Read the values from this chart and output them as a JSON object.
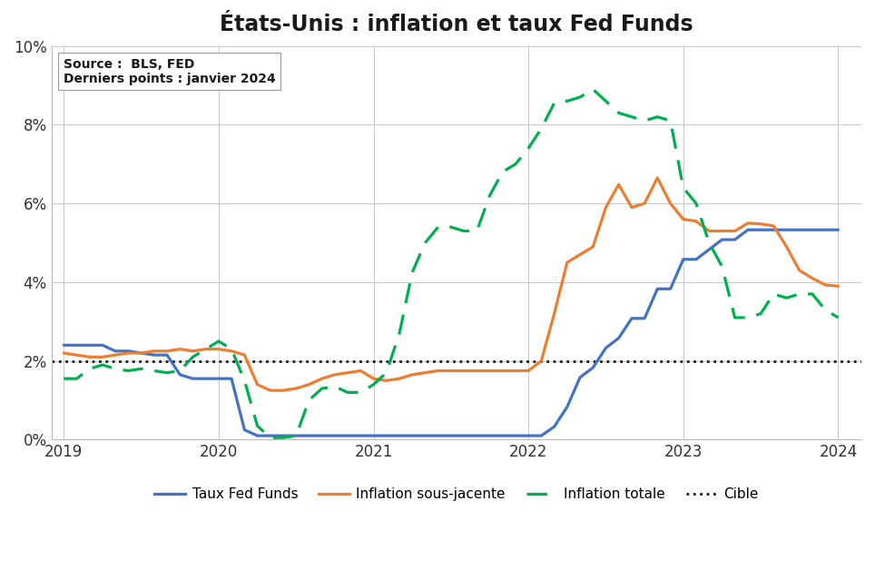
{
  "title": "États-Unis : inflation et taux Fed Funds",
  "source_text": "Source :  BLS, FED\nDerniers points : janvier 2024",
  "ylim": [
    0,
    0.1
  ],
  "yticks": [
    0,
    0.02,
    0.04,
    0.06,
    0.08,
    0.1
  ],
  "ytick_labels": [
    "0%",
    "2%",
    "4%",
    "6%",
    "8%",
    "10%"
  ],
  "xlim": [
    2018.92,
    2024.15
  ],
  "xticks": [
    2019,
    2020,
    2021,
    2022,
    2023,
    2024
  ],
  "legend_labels": [
    "Taux Fed Funds",
    "Inflation sous-jacente",
    "Inflation totale",
    "Cible"
  ],
  "colors": {
    "fed_funds": "#4472C4",
    "core_inflation": "#ED7D31",
    "total_inflation": "#00B050",
    "target": "#1a1a1a"
  },
  "target_value": 0.02,
  "fed_funds": {
    "x": [
      2019.0,
      2019.083,
      2019.167,
      2019.25,
      2019.333,
      2019.417,
      2019.5,
      2019.583,
      2019.667,
      2019.75,
      2019.833,
      2019.917,
      2020.0,
      2020.083,
      2020.167,
      2020.25,
      2020.333,
      2020.417,
      2020.5,
      2020.583,
      2020.667,
      2020.75,
      2020.833,
      2020.917,
      2021.0,
      2021.083,
      2021.167,
      2021.25,
      2021.333,
      2021.417,
      2021.5,
      2021.583,
      2021.667,
      2021.75,
      2021.833,
      2021.917,
      2022.0,
      2022.083,
      2022.167,
      2022.25,
      2022.333,
      2022.417,
      2022.5,
      2022.583,
      2022.667,
      2022.75,
      2022.833,
      2022.917,
      2023.0,
      2023.083,
      2023.167,
      2023.25,
      2023.333,
      2023.417,
      2023.5,
      2023.583,
      2023.667,
      2023.75,
      2023.833,
      2023.917,
      2024.0
    ],
    "y": [
      0.024,
      0.024,
      0.024,
      0.024,
      0.0225,
      0.0225,
      0.022,
      0.0215,
      0.0215,
      0.0165,
      0.0155,
      0.0155,
      0.0155,
      0.0155,
      0.0025,
      0.001,
      0.001,
      0.001,
      0.001,
      0.001,
      0.001,
      0.001,
      0.001,
      0.001,
      0.001,
      0.001,
      0.001,
      0.001,
      0.001,
      0.001,
      0.001,
      0.001,
      0.001,
      0.001,
      0.001,
      0.001,
      0.001,
      0.001,
      0.0033,
      0.0083,
      0.0158,
      0.0183,
      0.0233,
      0.0258,
      0.0308,
      0.0308,
      0.0383,
      0.0383,
      0.0458,
      0.0458,
      0.0483,
      0.0508,
      0.0508,
      0.0533,
      0.0533,
      0.0533,
      0.0533,
      0.0533,
      0.0533,
      0.0533,
      0.0533
    ]
  },
  "core_inflation": {
    "x": [
      2019.0,
      2019.083,
      2019.167,
      2019.25,
      2019.333,
      2019.417,
      2019.5,
      2019.583,
      2019.667,
      2019.75,
      2019.833,
      2019.917,
      2020.0,
      2020.083,
      2020.167,
      2020.25,
      2020.333,
      2020.417,
      2020.5,
      2020.583,
      2020.667,
      2020.75,
      2020.833,
      2020.917,
      2021.0,
      2021.083,
      2021.167,
      2021.25,
      2021.333,
      2021.417,
      2021.5,
      2021.583,
      2021.667,
      2021.75,
      2021.833,
      2021.917,
      2022.0,
      2022.083,
      2022.167,
      2022.25,
      2022.333,
      2022.417,
      2022.5,
      2022.583,
      2022.667,
      2022.75,
      2022.833,
      2022.917,
      2023.0,
      2023.083,
      2023.167,
      2023.25,
      2023.333,
      2023.417,
      2023.5,
      2023.583,
      2023.667,
      2023.75,
      2023.833,
      2023.917,
      2024.0
    ],
    "y": [
      0.022,
      0.0215,
      0.021,
      0.021,
      0.0215,
      0.022,
      0.022,
      0.0225,
      0.0225,
      0.023,
      0.0225,
      0.023,
      0.023,
      0.0225,
      0.0215,
      0.014,
      0.0125,
      0.0125,
      0.013,
      0.014,
      0.0155,
      0.0165,
      0.017,
      0.0175,
      0.0155,
      0.015,
      0.0155,
      0.0165,
      0.017,
      0.0175,
      0.0175,
      0.0175,
      0.0175,
      0.0175,
      0.0175,
      0.0175,
      0.0175,
      0.02,
      0.032,
      0.045,
      0.047,
      0.049,
      0.059,
      0.0648,
      0.059,
      0.06,
      0.0665,
      0.06,
      0.056,
      0.0555,
      0.053,
      0.053,
      0.053,
      0.055,
      0.0548,
      0.0543,
      0.049,
      0.043,
      0.041,
      0.0393,
      0.039
    ]
  },
  "total_inflation": {
    "x": [
      2019.0,
      2019.083,
      2019.167,
      2019.25,
      2019.333,
      2019.417,
      2019.5,
      2019.583,
      2019.667,
      2019.75,
      2019.833,
      2019.917,
      2020.0,
      2020.083,
      2020.167,
      2020.25,
      2020.333,
      2020.417,
      2020.5,
      2020.583,
      2020.667,
      2020.75,
      2020.833,
      2020.917,
      2021.0,
      2021.083,
      2021.167,
      2021.25,
      2021.333,
      2021.417,
      2021.5,
      2021.583,
      2021.667,
      2021.75,
      2021.833,
      2021.917,
      2022.0,
      2022.083,
      2022.167,
      2022.25,
      2022.333,
      2022.417,
      2022.5,
      2022.583,
      2022.667,
      2022.75,
      2022.833,
      2022.917,
      2023.0,
      2023.083,
      2023.167,
      2023.25,
      2023.333,
      2023.417,
      2023.5,
      2023.583,
      2023.667,
      2023.75,
      2023.833,
      2023.917,
      2024.0
    ],
    "y": [
      0.0155,
      0.0155,
      0.018,
      0.019,
      0.018,
      0.0175,
      0.018,
      0.0175,
      0.017,
      0.0175,
      0.021,
      0.023,
      0.025,
      0.023,
      0.015,
      0.0035,
      0.0005,
      0.0005,
      0.001,
      0.01,
      0.013,
      0.0135,
      0.012,
      0.012,
      0.014,
      0.017,
      0.027,
      0.0425,
      0.05,
      0.054,
      0.054,
      0.053,
      0.053,
      0.062,
      0.068,
      0.07,
      0.074,
      0.079,
      0.0855,
      0.086,
      0.087,
      0.089,
      0.086,
      0.083,
      0.082,
      0.081,
      0.082,
      0.081,
      0.064,
      0.06,
      0.05,
      0.044,
      0.031,
      0.031,
      0.032,
      0.037,
      0.036,
      0.037,
      0.037,
      0.033,
      0.031
    ]
  }
}
